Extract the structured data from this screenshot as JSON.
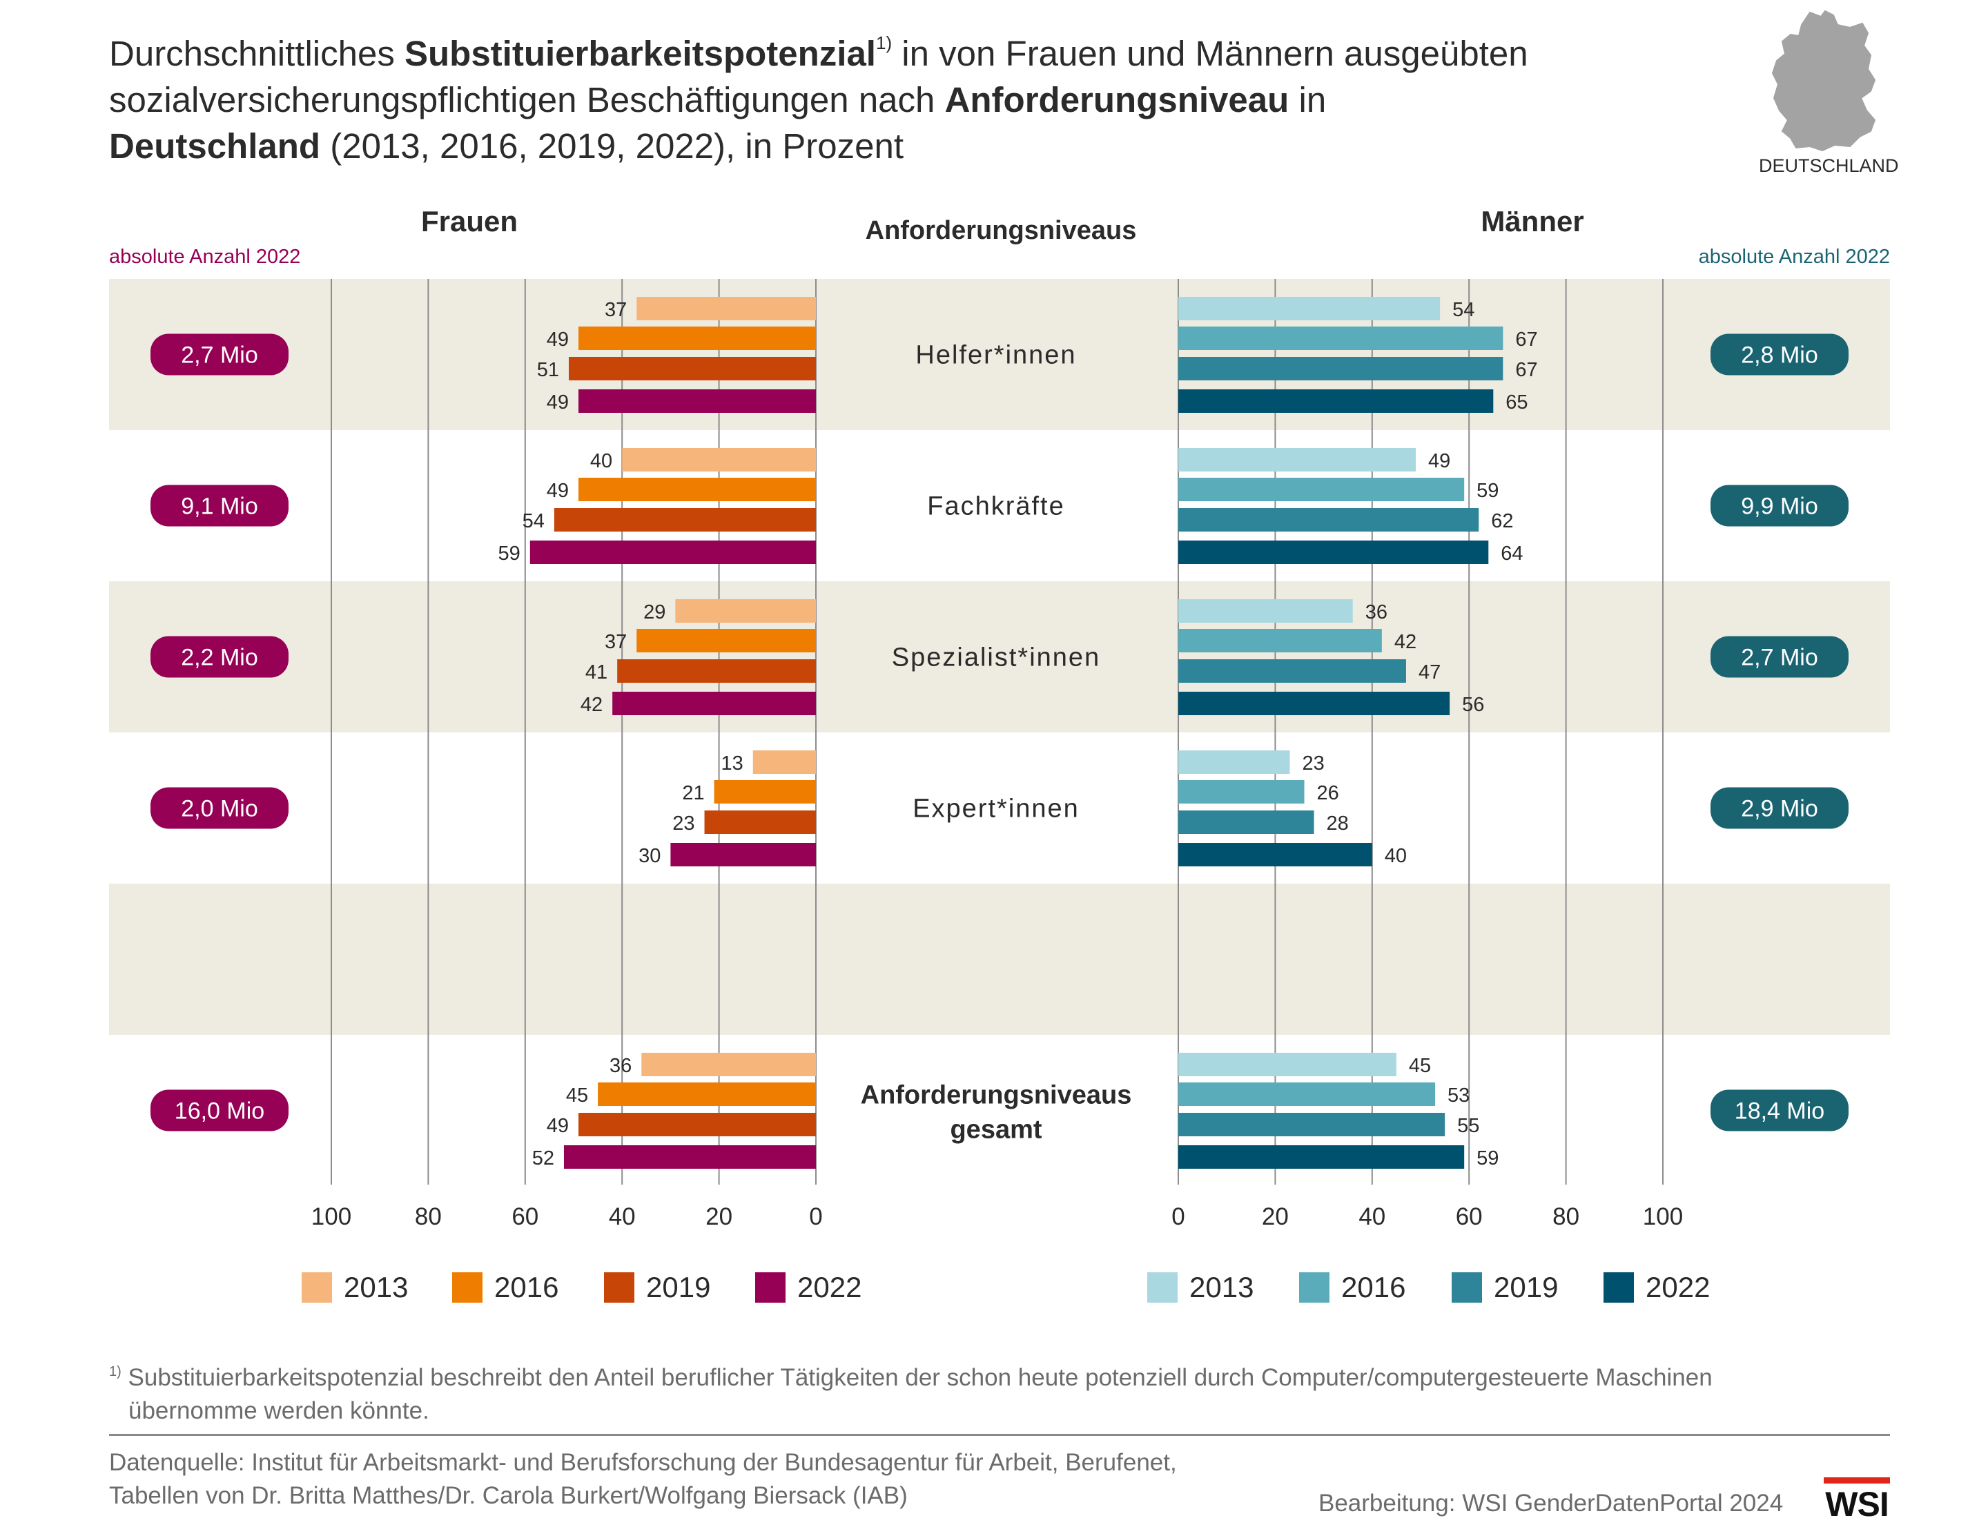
{
  "title": {
    "part1": "Durchschnittliches ",
    "bold1": "Substituierbarkeitspotenzial",
    "sup": "1)",
    "part2": " in von Frauen und Männern ausgeübten",
    "line2a": "sozialversicherungspflichtigen Beschäftigungen nach ",
    "bold2": "Anforderungsniveau",
    "line2b": " in",
    "bold3": "Deutschland",
    "line3": " (2013, 2016, 2019, 2022), in Prozent"
  },
  "map_label": "DEUTSCHLAND",
  "headers": {
    "women": "Frauen",
    "center": "Anforderungsniveaus",
    "men": "Männer",
    "abs_left": "absolute Anzahl 2022",
    "abs_right": "absolute Anzahl 2022"
  },
  "colors": {
    "women": [
      "#f6b57a",
      "#ee7d00",
      "#c74507",
      "#960055"
    ],
    "men": [
      "#a9d8e0",
      "#5aacba",
      "#2e8599",
      "#00516e"
    ],
    "women_badge": "#960055",
    "men_badge": "#1a6472",
    "band": "#eeebe0",
    "grid": "#8c8c8c"
  },
  "chart_data": {
    "type": "bar",
    "orientation": "horizontal-butterfly",
    "categories": [
      "Helfer*innen",
      "Fachkräfte",
      "Spezialist*innen",
      "Expert*innen",
      "",
      "Anforderungsniveaus gesamt"
    ],
    "years": [
      "2013",
      "2016",
      "2019",
      "2022"
    ],
    "xlim": [
      0,
      100
    ],
    "ticks_left": [
      "100",
      "80",
      "60",
      "40",
      "20",
      "0"
    ],
    "ticks_right": [
      "0",
      "20",
      "40",
      "60",
      "80",
      "100"
    ],
    "women": {
      "name": "Frauen",
      "values": [
        [
          37,
          49,
          51,
          49
        ],
        [
          40,
          49,
          54,
          59
        ],
        [
          29,
          37,
          41,
          42
        ],
        [
          13,
          21,
          23,
          30
        ],
        null,
        [
          36,
          45,
          49,
          52
        ]
      ],
      "absolute_2022": [
        "2,7 Mio",
        "9,1 Mio",
        "2,2 Mio",
        "2,0 Mio",
        "",
        "16,0 Mio"
      ]
    },
    "men": {
      "name": "Männer",
      "values": [
        [
          54,
          67,
          67,
          65
        ],
        [
          49,
          59,
          62,
          64
        ],
        [
          36,
          42,
          47,
          56
        ],
        [
          23,
          26,
          28,
          40
        ],
        null,
        [
          45,
          53,
          55,
          59
        ]
      ],
      "absolute_2022": [
        "2,8 Mio",
        "9,9 Mio",
        "2,7 Mio",
        "2,9 Mio",
        "",
        "18,4 Mio"
      ]
    },
    "legend": [
      "2013",
      "2016",
      "2019",
      "2022"
    ],
    "grid": true
  },
  "footnote": {
    "marker": "1)",
    "text1": " Substituierbarkeitspotenzial beschreibt den Anteil beruflicher Tätigkeiten der schon heute potenziell durch Computer/computergesteuerte Maschinen",
    "text2": "übernomme werden könnte."
  },
  "source": {
    "line1": "Datenquelle: Institut für Arbeitsmarkt- und Berufsforschung der Bundesagentur für Arbeit, Berufenet,",
    "line2": "Tabellen von Dr. Britta Matthes/Dr. Carola Burkert/Wolfgang Biersack (IAB)"
  },
  "credit": "Bearbeitung: WSI GenderDatenPortal 2024",
  "logo": "WSI"
}
